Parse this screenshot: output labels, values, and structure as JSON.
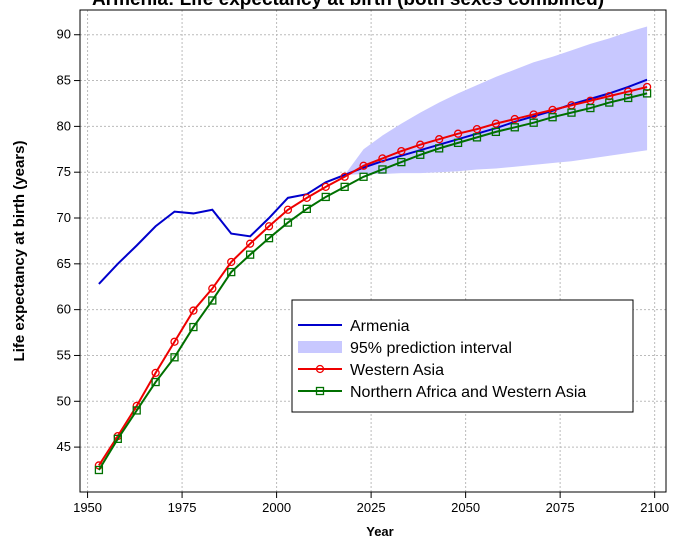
{
  "chart_data": {
    "type": "line",
    "title": "Armenia: Life expectancy at birth (both sexes combined)",
    "xlabel": "Year",
    "ylabel": "Life expectancy at birth (years)",
    "x": [
      1953,
      1958,
      1963,
      1968,
      1973,
      1978,
      1983,
      1988,
      1993,
      1998,
      2003,
      2008,
      2013,
      2018,
      2023,
      2028,
      2033,
      2038,
      2043,
      2048,
      2053,
      2058,
      2063,
      2068,
      2073,
      2078,
      2083,
      2088,
      2093,
      2098
    ],
    "series": [
      {
        "name": "Armenia",
        "color": "#0000cc",
        "marker": "none",
        "values": [
          62.8,
          65,
          67,
          69.1,
          70.7,
          70.5,
          70.9,
          68.3,
          68,
          70,
          72.2,
          72.6,
          73.9,
          74.7,
          75.5,
          76.2,
          76.8,
          77.4,
          78,
          78.6,
          79.2,
          79.8,
          80.5,
          81.1,
          81.7,
          82.4,
          83,
          83.6,
          84.3,
          85.1
        ]
      },
      {
        "name": "Western Asia",
        "color": "#ee0000",
        "marker": "circle",
        "values": [
          43,
          46.2,
          49.5,
          53.1,
          56.5,
          59.9,
          62.3,
          65.2,
          67.2,
          69.1,
          70.9,
          72.2,
          73.4,
          74.5,
          75.7,
          76.5,
          77.3,
          78,
          78.6,
          79.2,
          79.7,
          80.3,
          80.8,
          81.3,
          81.8,
          82.3,
          82.8,
          83.3,
          83.8,
          84.3
        ]
      },
      {
        "name": "Northern Africa and Western Asia",
        "color": "#007000",
        "marker": "square",
        "values": [
          42.5,
          45.9,
          49,
          52.1,
          54.8,
          58.1,
          61,
          64.1,
          66,
          67.8,
          69.5,
          71,
          72.3,
          73.4,
          74.5,
          75.3,
          76.1,
          76.9,
          77.6,
          78.2,
          78.8,
          79.4,
          79.9,
          80.4,
          81,
          81.5,
          82,
          82.6,
          83.1,
          83.6
        ]
      }
    ],
    "band": {
      "name": "95% prediction interval",
      "color": "#c8c8ff",
      "x": [
        2018,
        2023,
        2028,
        2033,
        2038,
        2043,
        2048,
        2053,
        2058,
        2063,
        2068,
        2073,
        2078,
        2083,
        2088,
        2093,
        2098
      ],
      "lower": [
        74.7,
        74.8,
        74.8,
        74.9,
        74.9,
        75,
        75.1,
        75.3,
        75.4,
        75.6,
        75.8,
        76,
        76.2,
        76.5,
        76.8,
        77.1,
        77.4
      ],
      "upper": [
        74.7,
        77.5,
        79,
        80.3,
        81.5,
        82.6,
        83.6,
        84.5,
        85.4,
        86.2,
        87,
        87.6,
        88.3,
        89,
        89.6,
        90.3,
        90.9
      ]
    },
    "xlim": [
      1948,
      2103
    ],
    "ylim": [
      40.1,
      92.7
    ],
    "xticks": [
      1950,
      1975,
      2000,
      2025,
      2050,
      2075,
      2100
    ],
    "yticks": [
      45,
      50,
      55,
      60,
      65,
      70,
      75,
      80,
      85,
      90
    ],
    "grid": true
  }
}
